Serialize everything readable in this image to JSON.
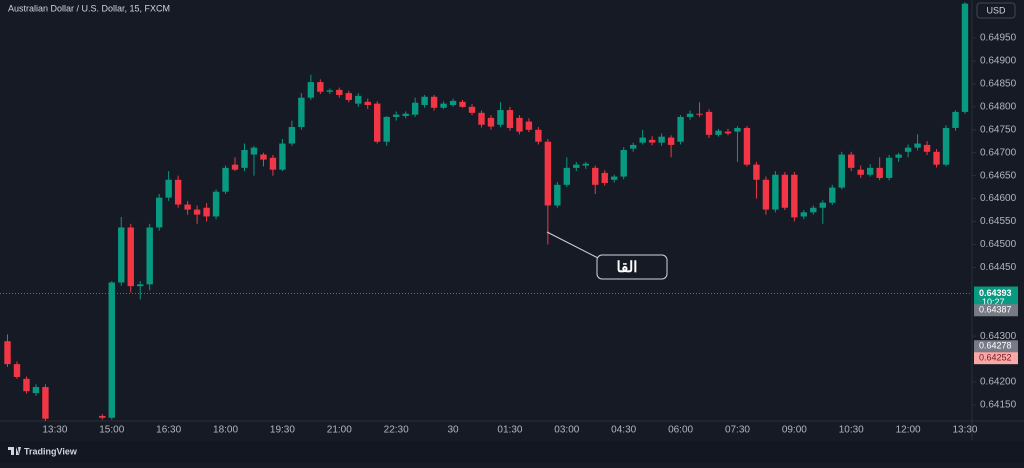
{
  "header": {
    "symbol": "Australian Dollar / U.S. Dollar, 15, FXCM",
    "currency_button": "USD"
  },
  "chart_data": {
    "type": "candlestick",
    "up_color": "#089981",
    "down_color": "#f23645",
    "grid": false,
    "categories": [
      null,
      null,
      null,
      null,
      null,
      "13:30",
      null,
      null,
      null,
      null,
      null,
      "15:00",
      null,
      null,
      null,
      null,
      null,
      "16:30",
      null,
      null,
      null,
      null,
      null,
      "18:00",
      null,
      null,
      null,
      null,
      null,
      "19:30",
      null,
      null,
      null,
      null,
      null,
      "21:00",
      null,
      null,
      null,
      null,
      null,
      "22:30",
      null,
      null,
      null,
      null,
      null,
      "30",
      null,
      null,
      null,
      null,
      null,
      "01:30",
      null,
      null,
      null,
      null,
      null,
      "03:00",
      null,
      null,
      null,
      null,
      null,
      "04:30",
      null,
      null,
      null,
      null,
      null,
      "06:00",
      null,
      null,
      null,
      null,
      null,
      "07:30",
      null,
      null,
      null,
      null,
      null,
      "09:00",
      null,
      null,
      null,
      null,
      null,
      "10:30",
      null,
      null,
      null,
      null,
      null,
      "12:00",
      null,
      null,
      null,
      null,
      null,
      "13:30"
    ],
    "open": [
      0.64289,
      0.64239,
      0.64207,
      0.64176,
      0.64189,
      null,
      null,
      null,
      null,
      null,
      0.64126,
      0.64122,
      0.64417,
      0.64537,
      0.64409,
      0.64413,
      0.64537,
      0.64602,
      0.64641,
      0.64587,
      0.64576,
      0.6458,
      0.64561,
      0.64615,
      0.64674,
      0.64667,
      0.64696,
      0.64696,
      0.64689,
      0.64663,
      0.6472,
      0.64756,
      0.6482,
      0.64854,
      0.64833,
      0.64837,
      0.6483,
      0.64807,
      0.64811,
      0.64807,
      0.64724,
      0.64778,
      0.6478,
      0.64783,
      0.64804,
      0.64822,
      0.64798,
      0.64804,
      0.64811,
      0.648,
      0.64787,
      0.64776,
      0.64761,
      0.64793,
      0.64776,
      0.64768,
      0.6475,
      0.64724,
      0.64585,
      0.6463,
      0.64667,
      0.64672,
      0.64667,
      0.64656,
      0.64641,
      0.64648,
      0.64709,
      0.64722,
      0.64728,
      0.64722,
      0.64733,
      0.64724,
      0.64778,
      0.64785,
      0.64789,
      0.64739,
      0.64746,
      0.64746,
      0.64754,
      0.64674,
      0.64641,
      0.64576,
      0.64652,
      0.64652,
      0.64561,
      0.6457,
      0.6458,
      0.64591,
      0.64624,
      0.64696,
      0.64663,
      0.64652,
      0.64667,
      0.64645,
      0.64689,
      0.64702,
      0.64711,
      0.64717,
      0.64702,
      0.64674,
      0.64754,
      0.64789
    ],
    "high": [
      0.64304,
      0.64245,
      0.64212,
      0.64195,
      0.64195,
      null,
      null,
      null,
      null,
      null,
      0.6413,
      0.6442,
      0.6456,
      0.64545,
      0.6442,
      0.64545,
      0.6461,
      0.6466,
      0.6465,
      0.64595,
      0.64585,
      0.6459,
      0.6462,
      0.64672,
      0.6469,
      0.6472,
      0.64715,
      0.647,
      0.64695,
      0.6473,
      0.6477,
      0.6483,
      0.6487,
      0.6486,
      0.6484,
      0.64842,
      0.64835,
      0.6483,
      0.64818,
      0.64812,
      0.6478,
      0.6479,
      0.6479,
      0.6482,
      0.64826,
      0.64826,
      0.64812,
      0.64818,
      0.64815,
      0.64806,
      0.64792,
      0.64782,
      0.6481,
      0.648,
      0.64782,
      0.64775,
      0.64756,
      0.6473,
      0.64636,
      0.6469,
      0.6468,
      0.6468,
      0.64672,
      0.64662,
      0.64652,
      0.64712,
      0.64722,
      0.6475,
      0.64736,
      0.64742,
      0.64738,
      0.64782,
      0.64792,
      0.6481,
      0.64795,
      0.64752,
      0.64752,
      0.64758,
      0.64758,
      0.6468,
      0.64648,
      0.6466,
      0.64658,
      0.64658,
      0.64575,
      0.64585,
      0.64596,
      0.6463,
      0.64702,
      0.64702,
      0.64672,
      0.64675,
      0.6469,
      0.64695,
      0.647,
      0.64718,
      0.6474,
      0.64725,
      0.64708,
      0.6476,
      0.64792,
      0.65028
    ],
    "low": [
      0.64233,
      0.64207,
      0.64175,
      0.6417,
      0.64115,
      null,
      null,
      null,
      null,
      null,
      0.64118,
      0.64118,
      0.6441,
      0.64395,
      0.6438,
      0.644,
      0.6453,
      0.64595,
      0.6458,
      0.64565,
      0.64545,
      0.6455,
      0.64555,
      0.6461,
      0.6466,
      0.6466,
      0.6465,
      0.6467,
      0.6465,
      0.6466,
      0.64715,
      0.6475,
      0.64815,
      0.64828,
      0.64828,
      0.6482,
      0.6481,
      0.648,
      0.64795,
      0.6472,
      0.64715,
      0.6477,
      0.64775,
      0.64778,
      0.64798,
      0.64792,
      0.64795,
      0.648,
      0.64798,
      0.64782,
      0.64755,
      0.6475,
      0.64756,
      0.64748,
      0.6474,
      0.64745,
      0.64718,
      0.645,
      0.6458,
      0.64625,
      0.6466,
      0.64665,
      0.6461,
      0.64628,
      0.64635,
      0.64642,
      0.64702,
      0.64718,
      0.64716,
      0.64715,
      0.6469,
      0.64718,
      0.64772,
      0.64778,
      0.64732,
      0.64735,
      0.64738,
      0.6468,
      0.6467,
      0.646,
      0.64565,
      0.6457,
      0.64575,
      0.6455,
      0.64555,
      0.64565,
      0.64545,
      0.64586,
      0.6462,
      0.6466,
      0.64645,
      0.64648,
      0.6464,
      0.6464,
      0.6468,
      0.6469,
      0.64705,
      0.64695,
      0.64668,
      0.6467,
      0.64748,
      0.64785
    ],
    "close": [
      0.64239,
      0.64211,
      0.6418,
      0.64189,
      0.6412,
      null,
      null,
      null,
      null,
      null,
      0.64122,
      0.64417,
      0.64537,
      0.64409,
      0.64413,
      0.64537,
      0.64602,
      0.64641,
      0.64587,
      0.64576,
      0.64565,
      0.64561,
      0.64615,
      0.64667,
      0.64663,
      0.64706,
      0.64711,
      0.64685,
      0.64663,
      0.6472,
      0.64756,
      0.6482,
      0.64854,
      0.64833,
      0.64836,
      0.64826,
      0.64815,
      0.64824,
      0.64804,
      0.64724,
      0.64778,
      0.64783,
      0.64785,
      0.64809,
      0.64822,
      0.64798,
      0.64807,
      0.64813,
      0.648,
      0.64787,
      0.64761,
      0.64757,
      0.64793,
      0.64754,
      0.64746,
      0.6475,
      0.64724,
      0.64585,
      0.6463,
      0.64667,
      0.64674,
      0.64676,
      0.6463,
      0.64634,
      0.64648,
      0.64706,
      0.64717,
      0.64733,
      0.64722,
      0.64735,
      0.64717,
      0.64778,
      0.64785,
      0.64783,
      0.64739,
      0.64748,
      0.64742,
      0.64754,
      0.64674,
      0.64641,
      0.64576,
      0.64652,
      0.6458,
      0.64559,
      0.6457,
      0.6458,
      0.64591,
      0.64624,
      0.64696,
      0.64667,
      0.64652,
      0.64667,
      0.64645,
      0.64689,
      0.64696,
      0.64711,
      0.6472,
      0.64702,
      0.64674,
      0.64754,
      0.64789,
      0.65025
    ],
    "ylim": [
      0.64115,
      0.65033
    ],
    "yticks": [
      {
        "value": 0.6415,
        "label": "0.64150"
      },
      {
        "value": 0.642,
        "label": "0.64200"
      },
      {
        "value": 0.643,
        "label": "0.64300"
      },
      {
        "value": 0.6445,
        "label": "0.64450"
      },
      {
        "value": 0.645,
        "label": "0.64500"
      },
      {
        "value": 0.6455,
        "label": "0.64550"
      },
      {
        "value": 0.646,
        "label": "0.64600"
      },
      {
        "value": 0.6465,
        "label": "0.64650"
      },
      {
        "value": 0.647,
        "label": "0.64700"
      },
      {
        "value": 0.6475,
        "label": "0.64750"
      },
      {
        "value": 0.648,
        "label": "0.64800"
      },
      {
        "value": 0.6485,
        "label": "0.64850"
      },
      {
        "value": 0.649,
        "label": "0.64900"
      },
      {
        "value": 0.6495,
        "label": "0.64950"
      }
    ],
    "price_labels": [
      {
        "value": 0.64393,
        "label": "0.64393",
        "color": "#089981"
      },
      {
        "value": 0.64387,
        "label": "0.64387",
        "color": "#787b86"
      },
      {
        "value": 0.64278,
        "label": "0.64278",
        "color": "#787b86"
      },
      {
        "value": 0.64252,
        "label": "0.64252",
        "color": "#f7a9a7"
      }
    ],
    "countdown": "10:27",
    "annotation": "القا"
  },
  "branding": "TradingView"
}
